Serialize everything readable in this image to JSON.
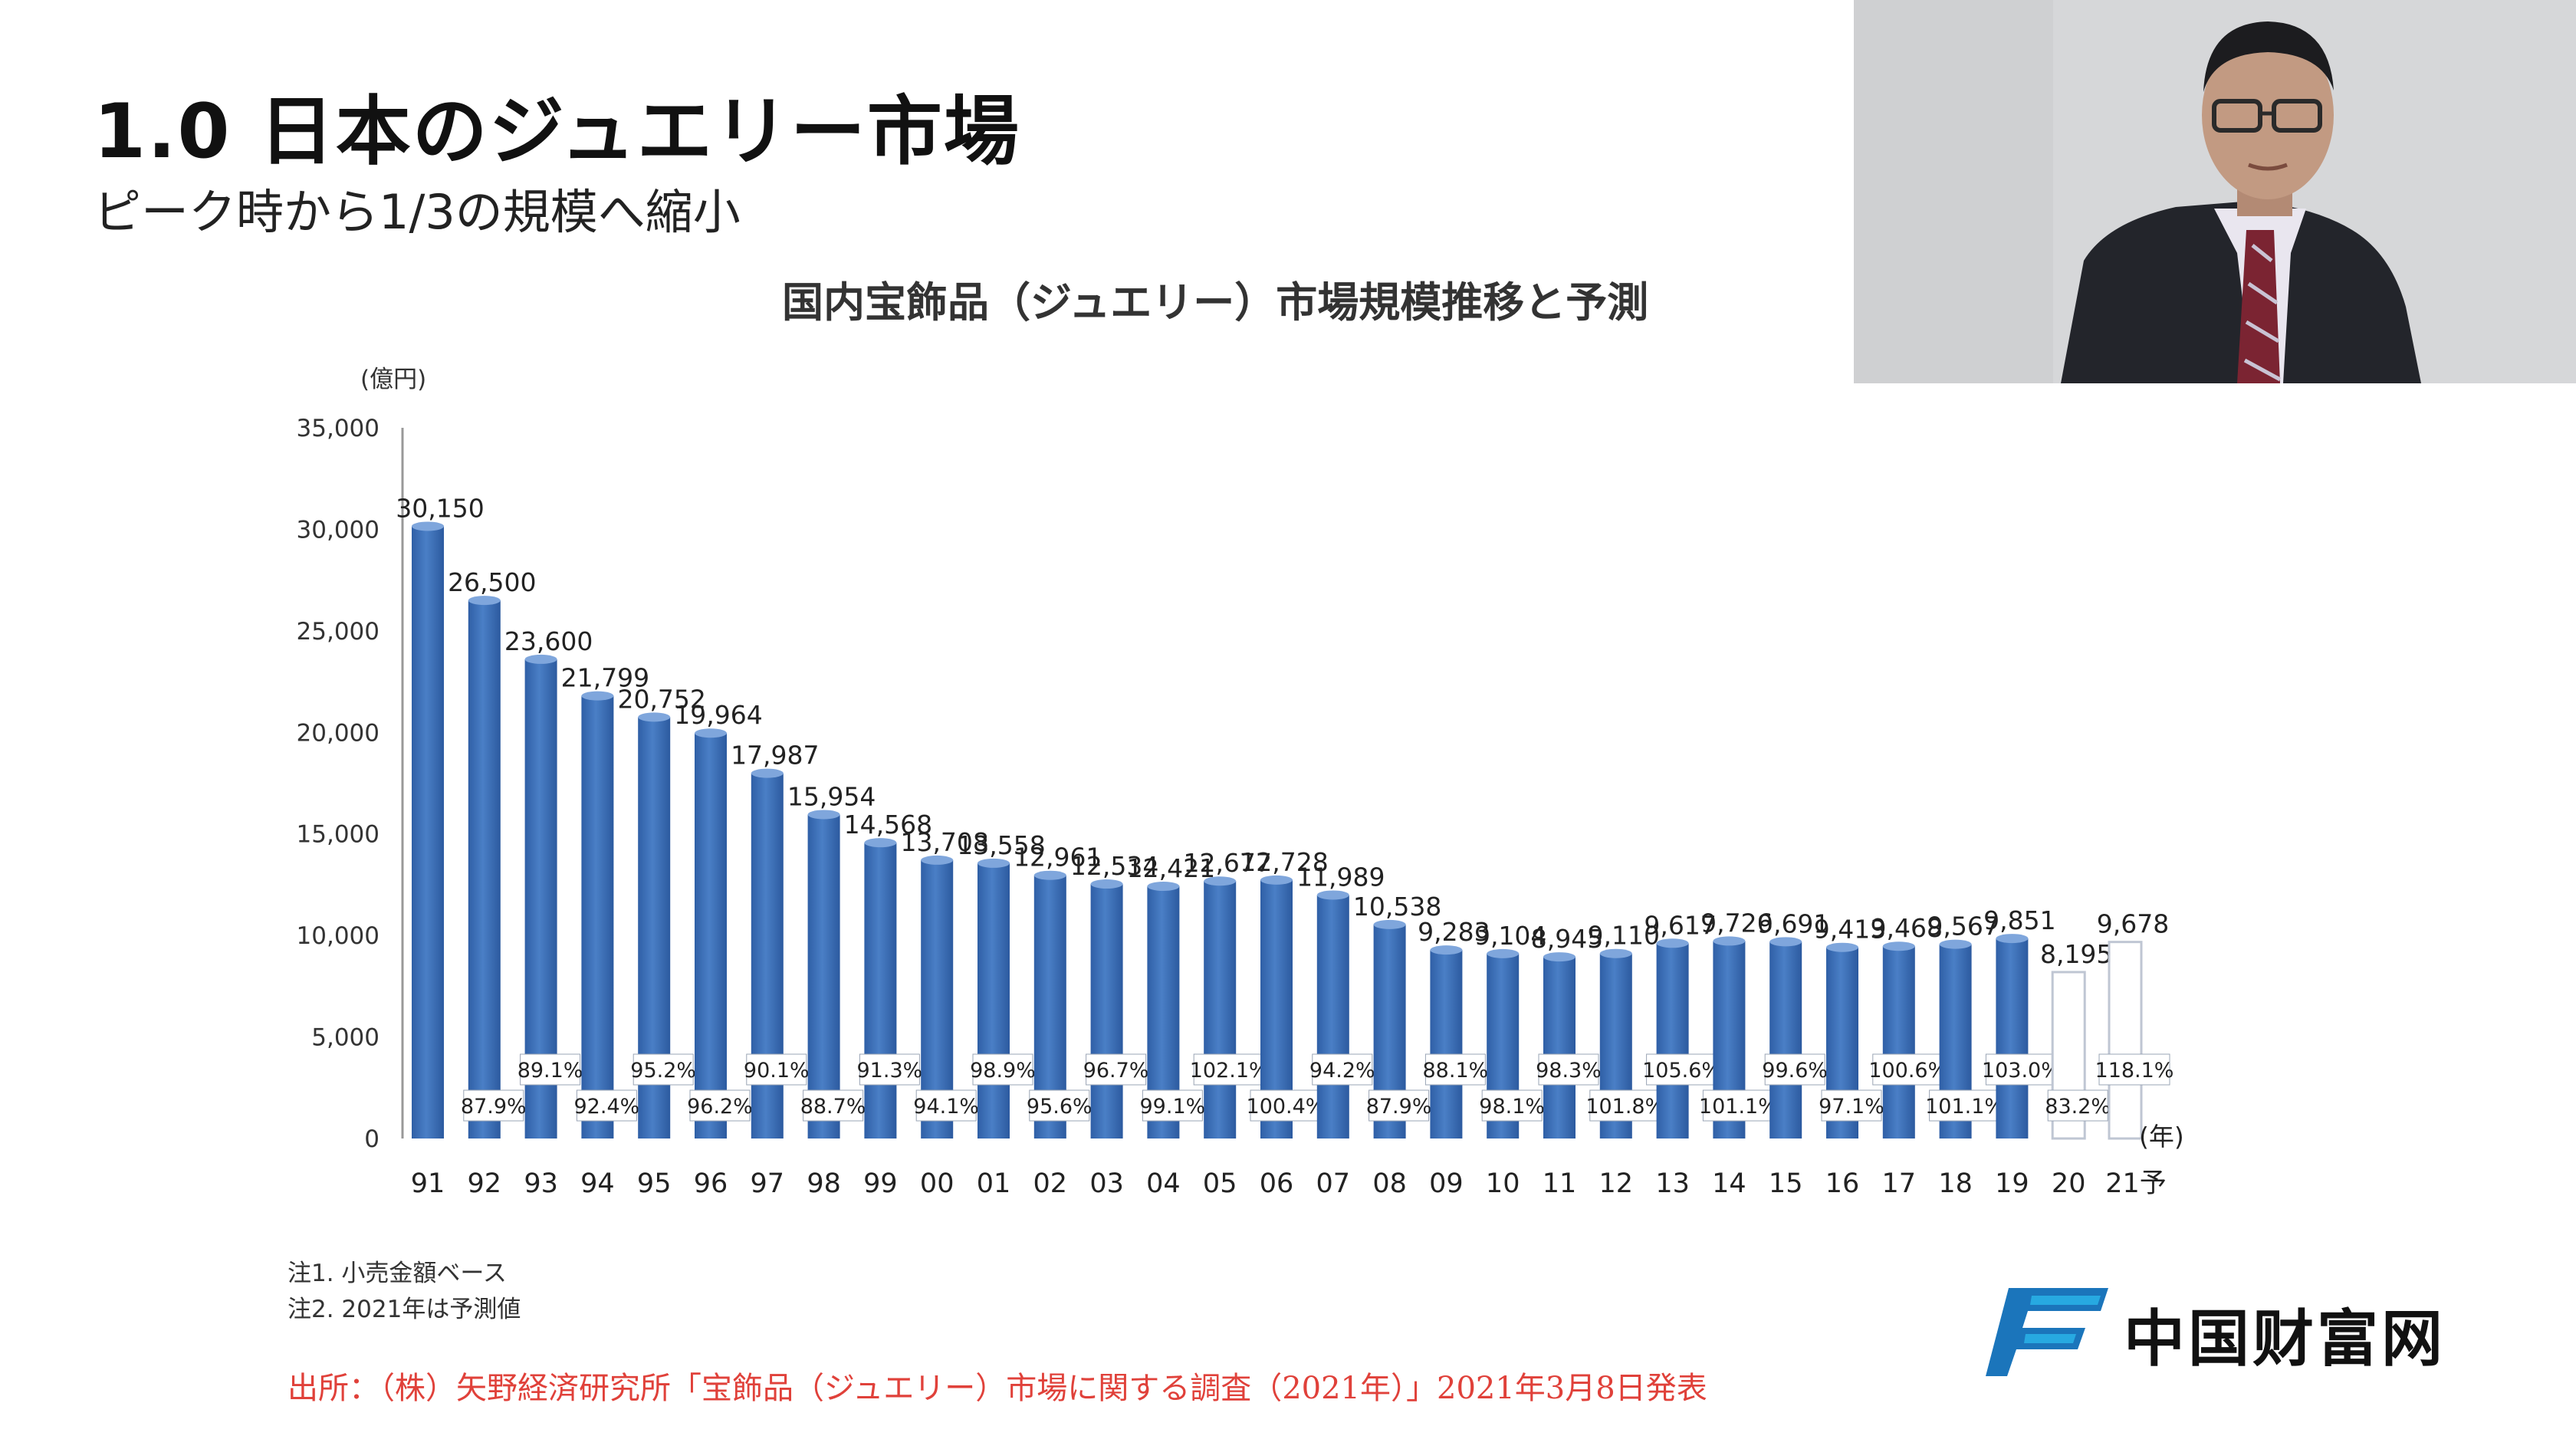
{
  "slide": {
    "title": "1.0 日本のジュエリー市場",
    "subtitle": "ピーク時から1/3の規模へ縮小"
  },
  "chart_data": {
    "type": "bar",
    "title": "国内宝飾品（ジュエリー）市場規模推移と予測",
    "ylabel": "(億円)",
    "xlabel": "(年)",
    "ylim": [
      0,
      35000
    ],
    "yticks": [
      "0",
      "5,000",
      "10,000",
      "15,000",
      "20,000",
      "25,000",
      "30,000",
      "35,000"
    ],
    "grid": false,
    "categories": [
      "91",
      "92",
      "93",
      "94",
      "95",
      "96",
      "97",
      "98",
      "99",
      "00",
      "01",
      "02",
      "03",
      "04",
      "05",
      "06",
      "07",
      "08",
      "09",
      "10",
      "11",
      "12",
      "13",
      "14",
      "15",
      "16",
      "17",
      "18",
      "19",
      "20",
      "21予"
    ],
    "values": [
      30150,
      26500,
      23600,
      21799,
      20752,
      19964,
      17987,
      15954,
      14568,
      13708,
      13558,
      12961,
      12534,
      12421,
      12677,
      12728,
      11989,
      10538,
      9283,
      9104,
      8945,
      9110,
      9617,
      9726,
      9691,
      9413,
      9468,
      9567,
      9851,
      8195,
      9678
    ],
    "value_labels": [
      "30,150",
      "26,500",
      "23,600",
      "21,799",
      "20,752",
      "19,964",
      "17,987",
      "15,954",
      "14,568",
      "13,708",
      "13,558",
      "12,961",
      "12,534",
      "12,421",
      "12,677",
      "12,728",
      "11,989",
      "10,538",
      "9,283",
      "9,104",
      "8,945",
      "9,110",
      "9,617",
      "9,726",
      "9,691",
      "9,413",
      "9,468",
      "9,567",
      "9,851",
      "8,195",
      "9,678"
    ],
    "yoy": [
      "",
      "87.9%",
      "89.1%",
      "92.4%",
      "95.2%",
      "96.2%",
      "90.1%",
      "88.7%",
      "91.3%",
      "94.1%",
      "98.9%",
      "95.6%",
      "96.7%",
      "99.1%",
      "102.1%",
      "100.4%",
      "94.2%",
      "87.9%",
      "88.1%",
      "98.1%",
      "98.3%",
      "101.8%",
      "105.6%",
      "101.1%",
      "99.6%",
      "97.1%",
      "100.6%",
      "101.1%",
      "103.0%",
      "83.2%",
      "118.1%"
    ],
    "hollow_bars": [
      "20",
      "21予"
    ],
    "colors": {
      "bar": "#3a6db5",
      "bar_light": "#7fa6dc",
      "hollow": "#ffffff",
      "outline": "#bfc6d3"
    }
  },
  "notes": {
    "note1": "注1. 小売金額ベース",
    "note2": "注2. 2021年は予測値"
  },
  "source": "出所：（株）矢野経済研究所「宝飾品（ジュエリー）市場に関する調査（2021年）」2021年3月8日発表",
  "watermark": {
    "text": "中国财富网",
    "colors": {
      "primary": "#1b75bb",
      "accent": "#27a9e1"
    }
  }
}
